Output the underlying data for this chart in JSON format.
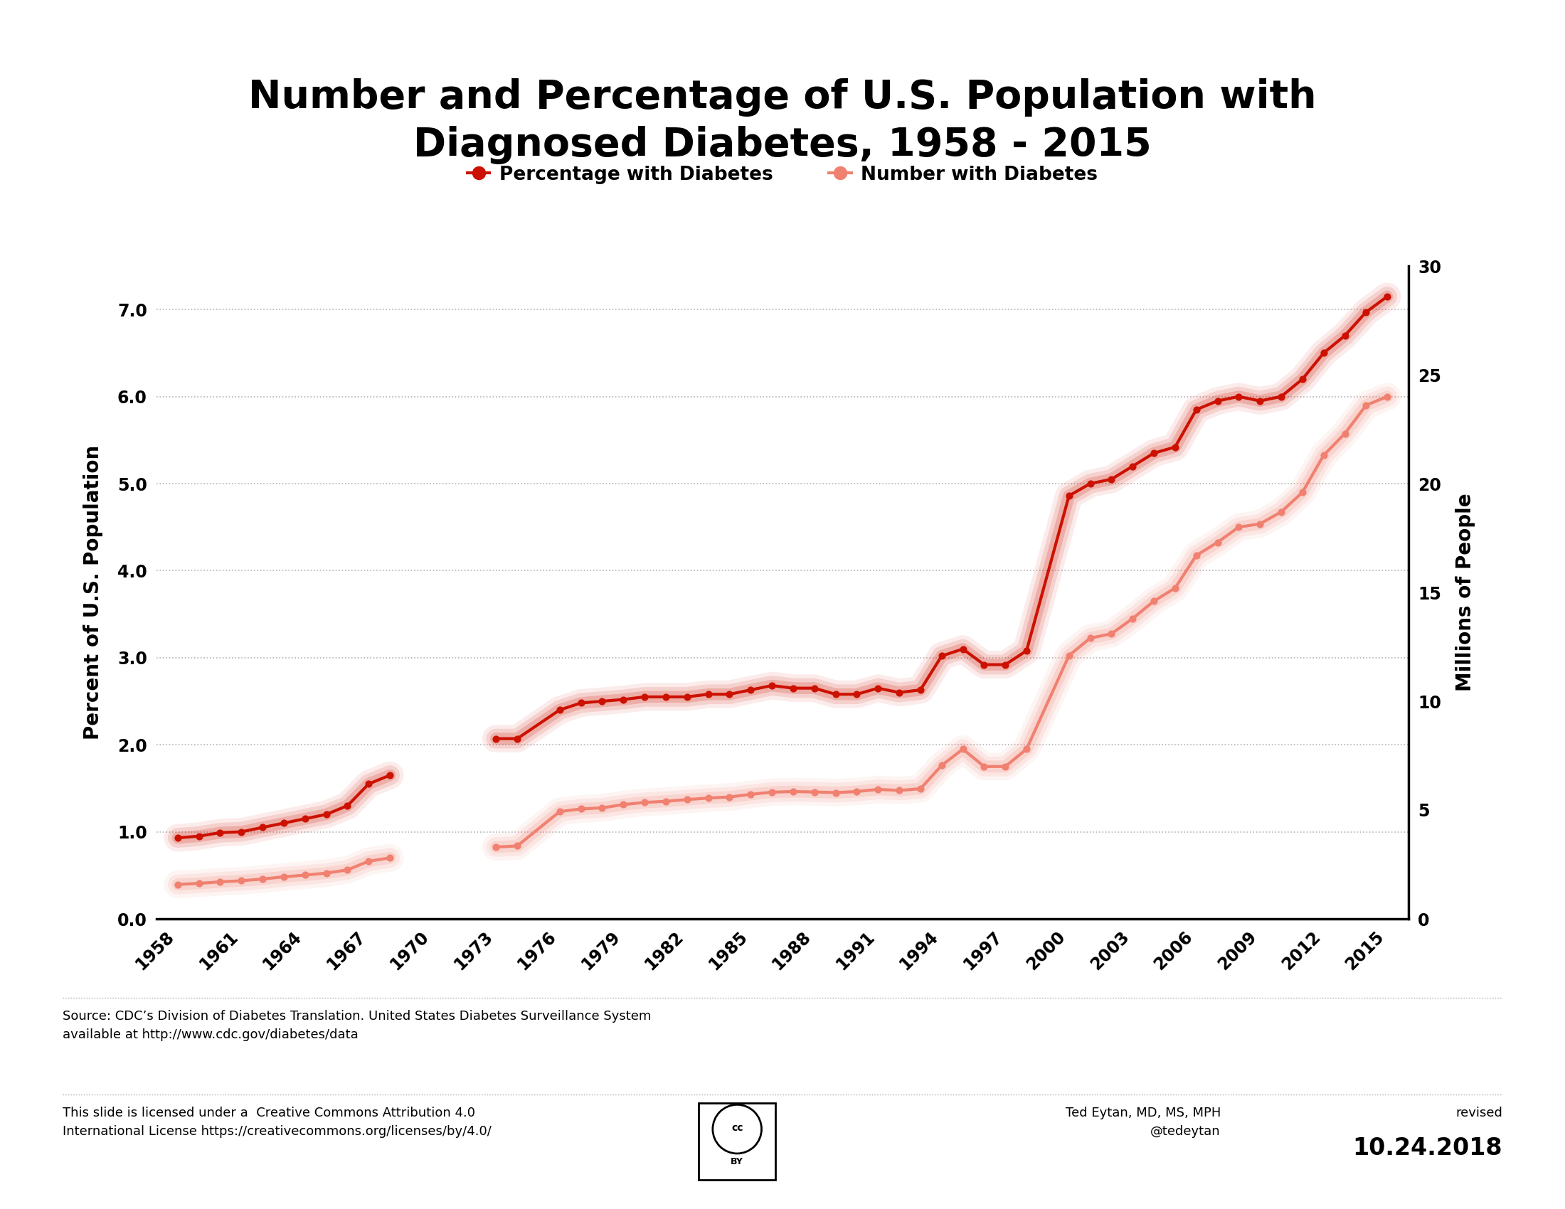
{
  "title": "Number and Percentage of U.S. Population with\nDiagnosed Diabetes, 1958 - 2015",
  "ylabel_left": "Percent of U.S. Population",
  "ylabel_right": "Millions of People",
  "legend_pct": "Percentage with Diabetes",
  "legend_num": "Number with Diabetes",
  "source_line1": "Source: CDC’s Division of Diabetes Translation. United States Diabetes Surveillance System",
  "source_line2": "available at http://www.cdc.gov/diabetes/data",
  "license_line1": "This slide is licensed under a  Creative Commons Attribution 4.0",
  "license_line2": "International License https://creativecommons.org/licenses/by/4.0/",
  "author_line1": "Ted Eytan, MD, MS, MPH",
  "author_line2": "@tedeytan",
  "revised_label": "revised",
  "revised_date": "10.24.2018",
  "pct_color": "#cc1100",
  "num_color": "#f08070",
  "background_color": "#ffffff",
  "pct_data": {
    "years": [
      1958,
      1959,
      1960,
      1961,
      1962,
      1963,
      1964,
      1965,
      1966,
      1967,
      1968,
      1973,
      1974,
      1976,
      1977,
      1978,
      1979,
      1980,
      1981,
      1982,
      1983,
      1984,
      1985,
      1986,
      1987,
      1988,
      1989,
      1990,
      1991,
      1992,
      1993,
      1994,
      1995,
      1996,
      1997,
      1998,
      2000,
      2001,
      2002,
      2003,
      2004,
      2005,
      2006,
      2007,
      2008,
      2009,
      2010,
      2011,
      2012,
      2013,
      2014,
      2015
    ],
    "values": [
      0.93,
      0.95,
      0.99,
      1.0,
      1.05,
      1.1,
      1.15,
      1.2,
      1.3,
      1.55,
      1.65,
      2.07,
      2.07,
      2.4,
      2.48,
      2.5,
      2.52,
      2.55,
      2.55,
      2.55,
      2.58,
      2.58,
      2.63,
      2.68,
      2.65,
      2.65,
      2.58,
      2.58,
      2.65,
      2.6,
      2.63,
      3.02,
      3.1,
      2.92,
      2.92,
      3.08,
      4.86,
      5.0,
      5.05,
      5.2,
      5.35,
      5.42,
      5.85,
      5.95,
      6.0,
      5.95,
      6.0,
      6.2,
      6.5,
      6.7,
      6.97,
      7.15
    ]
  },
  "num_data": {
    "years": [
      1958,
      1959,
      1960,
      1961,
      1962,
      1963,
      1964,
      1965,
      1966,
      1967,
      1968,
      1973,
      1974,
      1976,
      1977,
      1978,
      1979,
      1980,
      1981,
      1982,
      1983,
      1984,
      1985,
      1986,
      1987,
      1988,
      1989,
      1990,
      1991,
      1992,
      1993,
      1994,
      1995,
      1996,
      1997,
      1998,
      2000,
      2001,
      2002,
      2003,
      2004,
      2005,
      2006,
      2007,
      2008,
      2009,
      2010,
      2011,
      2012,
      2013,
      2014,
      2015
    ],
    "values": [
      1.58,
      1.63,
      1.7,
      1.75,
      1.83,
      1.93,
      2.01,
      2.1,
      2.25,
      2.65,
      2.8,
      3.3,
      3.35,
      4.93,
      5.05,
      5.1,
      5.25,
      5.35,
      5.4,
      5.48,
      5.55,
      5.6,
      5.72,
      5.82,
      5.85,
      5.83,
      5.8,
      5.85,
      5.95,
      5.9,
      5.98,
      7.05,
      7.8,
      7.0,
      7.0,
      7.8,
      12.1,
      12.9,
      13.1,
      13.8,
      14.6,
      15.2,
      16.7,
      17.3,
      18.0,
      18.15,
      18.7,
      19.6,
      21.3,
      22.3,
      23.6,
      24.0
    ]
  },
  "xtick_labels": [
    "1958",
    "1961",
    "1964",
    "1967",
    "1970",
    "1973",
    "1976",
    "1979",
    "1982",
    "1985",
    "1988",
    "1991",
    "1994",
    "1997",
    "2000",
    "2003",
    "2006",
    "2009",
    "2012",
    "2015"
  ],
  "xtick_years": [
    1958,
    1961,
    1964,
    1967,
    1970,
    1973,
    1976,
    1979,
    1982,
    1985,
    1988,
    1991,
    1994,
    1997,
    2000,
    2003,
    2006,
    2009,
    2012,
    2015
  ],
  "ylim_left": [
    0.0,
    7.5
  ],
  "ylim_right": [
    0,
    30
  ],
  "yticks_left": [
    0.0,
    1.0,
    2.0,
    3.0,
    4.0,
    5.0,
    6.0,
    7.0
  ],
  "ytick_labels_left": [
    "0.0",
    "1.0",
    "2.0",
    "3.0",
    "4.0",
    "5.0",
    "6.0",
    "7.0"
  ],
  "yticks_right": [
    0,
    5,
    10,
    15,
    20,
    25,
    30
  ],
  "ytick_labels_right": [
    "0",
    "5",
    "10",
    "15",
    "20",
    "25",
    "30"
  ]
}
